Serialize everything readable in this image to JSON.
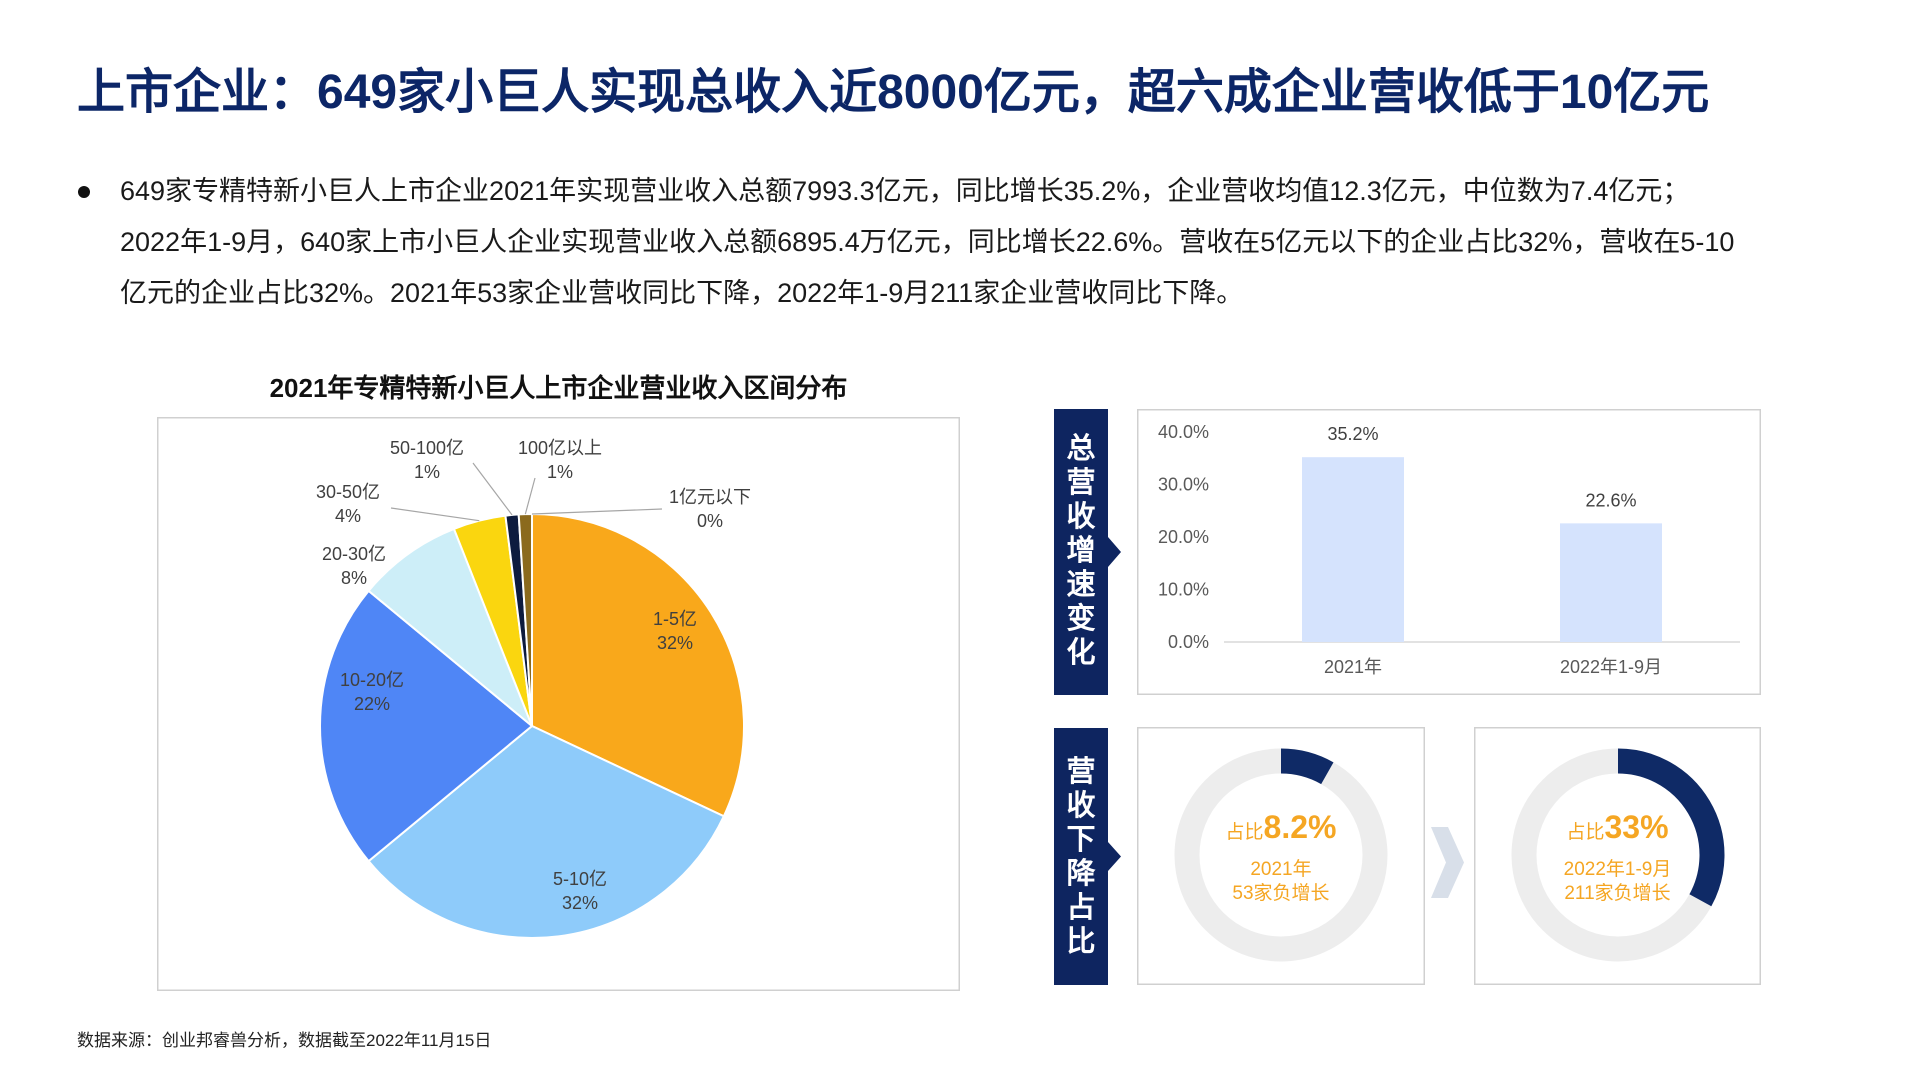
{
  "title": "上市企业：649家小巨人实现总收入近8000亿元，超六成企业营收低于10亿元",
  "summary": {
    "bullet_lines": [
      "649家专精特新小巨人上市企业2021年实现营业收入总额7993.3亿元，同比增长35.2%，企业营收均值12.3亿元，中位数为7.4亿元；",
      "2022年1-9月，640家上市小巨人企业实现营业收入总额6895.4万亿元，同比增长22.6%。营收在5亿元以下的企业占比32%，营收在5-10",
      "亿元的企业占比32%。2021年53家企业营收同比下降，2022年1-9月211家企业营收同比下降。"
    ]
  },
  "chart_data": [
    {
      "type": "pie",
      "title": "2021年专精特新小巨人上市企业营业收入区间分布",
      "categories": [
        "1亿元以下",
        "1-5亿",
        "5-10亿",
        "10-20亿",
        "20-30亿",
        "30-50亿",
        "50-100亿",
        "100亿以上"
      ],
      "values": [
        0,
        32,
        32,
        22,
        8,
        4,
        1,
        1
      ],
      "data_labels": [
        "0%",
        "32%",
        "32%",
        "22%",
        "8%",
        "4%",
        "1%",
        "1%"
      ],
      "colors": [
        "#7f6000",
        "#f9a81b",
        "#8ecbfa",
        "#4f86f6",
        "#cdeef8",
        "#fad60f",
        "#0d1b3e",
        "#8b6a1d"
      ],
      "legend": "none"
    },
    {
      "type": "bar",
      "categories": [
        "2021年",
        "2022年1-9月"
      ],
      "values": [
        35.2,
        22.6
      ],
      "data_labels": [
        "35.2%",
        "22.6%"
      ],
      "ylim": [
        0,
        40
      ],
      "yticks": [
        0,
        10,
        20,
        30,
        40
      ],
      "ytick_labels": [
        "0.0%",
        "10.0%",
        "20.0%",
        "30.0%",
        "40.0%"
      ],
      "color": "#d5e3fd",
      "grid": false,
      "legend": "none"
    }
  ],
  "growth_panel": {
    "tab_label": "总营收增速变化"
  },
  "decline_panel": {
    "tab_label": "营收下降占比",
    "items": [
      {
        "prefix": "占比",
        "value_text": "8.2%",
        "share": 8.2,
        "period": "2021年",
        "count": "53家负增长"
      },
      {
        "prefix": "占比",
        "value_text": "33%",
        "share": 33,
        "period": "2022年1-9月",
        "count": "211家负增长"
      }
    ],
    "colors": {
      "arc": "#0f2a66",
      "track": "#ededed",
      "text": "#f5a623",
      "arrow": "#d8dfe9"
    }
  },
  "source": "数据来源：创业邦睿兽分析，数据截至2022年11月15日",
  "colors": {
    "title": "#0c2667",
    "tab": "#0e2560",
    "bar": "#d5e3fd"
  }
}
